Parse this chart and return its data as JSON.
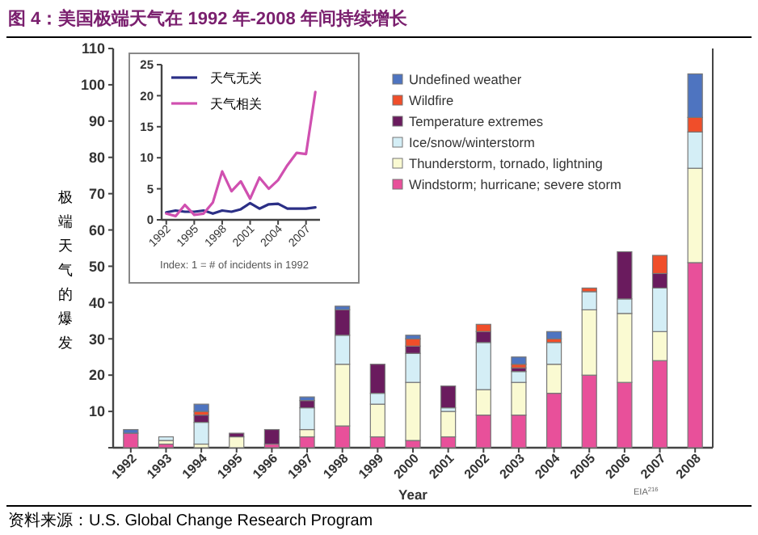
{
  "chart_data": [
    {
      "type": "bar",
      "stacked": true,
      "title": "图 4：美国极端天气在 1992 年-2008 年间持续增长",
      "xlabel": "Year",
      "ylabel": "极端天气的爆发",
      "legend": "top right",
      "annotations": [
        "EIA$^{216}$",
        "资料来源：U.S. Global Change Research Program"
      ],
      "categories": [
        "1992",
        "1993",
        "1994",
        "1995",
        "1996",
        "1997",
        "1998",
        "1999",
        "2000",
        "2001",
        "2002",
        "2003",
        "2004",
        "2005",
        "2006",
        "2007",
        "2008"
      ],
      "ylim": [
        0,
        110
      ],
      "yticks": [
        {
          "value": 0,
          "label": null
        },
        10,
        20,
        30,
        40,
        50,
        60,
        70,
        80,
        90,
        100,
        110
      ],
      "series": [
        {
          "name": "Windstorm; hurricane; severe storm",
          "color": "#e8509a",
          "values": [
            4,
            1,
            0,
            0,
            1,
            3,
            6,
            3,
            2,
            3,
            9,
            9,
            15,
            20,
            18,
            24,
            51
          ]
        },
        {
          "name": "Thunderstorm, tornado, lightning",
          "color": "#fafad2",
          "values": [
            0,
            1,
            1,
            3,
            0,
            2,
            17,
            9,
            16,
            7,
            7,
            9,
            8,
            18,
            19,
            8,
            26
          ]
        },
        {
          "name": "Ice/snow/winterstorm",
          "color": "#d4eef6",
          "values": [
            0,
            1,
            6,
            0,
            0,
            6,
            8,
            3,
            8,
            1,
            13,
            3,
            6,
            5,
            4,
            12,
            10
          ]
        },
        {
          "name": "Temperature extremes",
          "color": "#6a1b5e",
          "values": [
            0,
            0,
            2,
            1,
            4,
            2,
            7,
            8,
            2,
            6,
            3,
            1,
            0,
            0,
            13,
            4,
            0
          ]
        },
        {
          "name": "Wildfire",
          "color": "#f04e2a",
          "values": [
            0,
            0,
            1,
            0,
            0,
            0,
            0,
            0,
            2,
            0,
            2,
            1,
            1,
            1,
            0,
            5,
            4
          ]
        },
        {
          "name": "Undefined weather",
          "color": "#4e74c0",
          "values": [
            1,
            0,
            2,
            0,
            0,
            1,
            1,
            0,
            1,
            0,
            0,
            2,
            2,
            0,
            0,
            0,
            12
          ]
        }
      ]
    },
    {
      "type": "line",
      "legend": "top left",
      "annotations": [
        "Index: 1 = # of incidents in 1992"
      ],
      "x": [
        1992,
        1993,
        1994,
        1995,
        1996,
        1997,
        1998,
        1999,
        2000,
        2001,
        2002,
        2003,
        2004,
        2005,
        2006,
        2007,
        2008
      ],
      "xlim": [
        1991.5,
        2008.5
      ],
      "xticks": [
        1992,
        1995,
        1998,
        2001,
        2004,
        2007
      ],
      "ylim": [
        0,
        25
      ],
      "yticks": [
        0,
        5,
        10,
        15,
        20,
        25
      ],
      "series": [
        {
          "name": "天气无关",
          "color": "#2b2f86",
          "values": [
            1.2,
            1.5,
            1.3,
            1.3,
            1.5,
            1.0,
            1.5,
            1.3,
            1.7,
            2.7,
            1.8,
            2.5,
            2.6,
            1.8,
            1.8,
            1.8,
            2.0
          ]
        },
        {
          "name": "天气相关",
          "color": "#d050b0",
          "values": [
            1,
            0.6,
            2.4,
            0.8,
            1,
            2.8,
            7.8,
            4.6,
            6.2,
            3.4,
            6.8,
            5,
            6.4,
            8.8,
            10.8,
            10.6,
            20.6
          ]
        }
      ]
    }
  ]
}
